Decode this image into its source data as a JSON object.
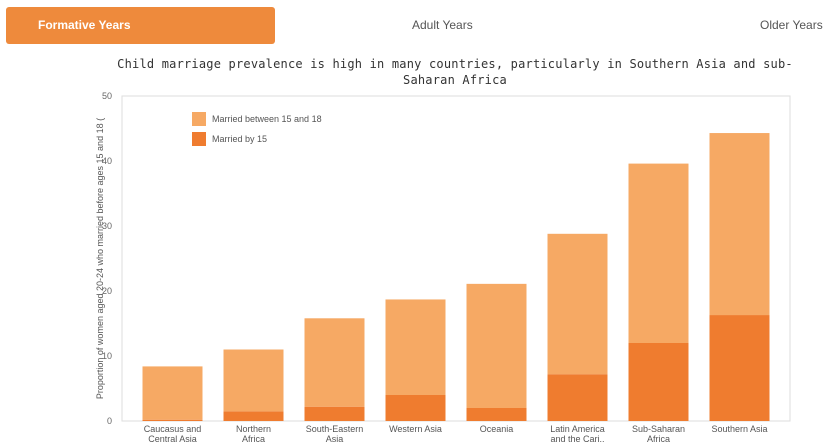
{
  "tabs": [
    {
      "label": "Formative Years",
      "active": true
    },
    {
      "label": "Adult Years",
      "active": false
    },
    {
      "label": "Older Years",
      "active": false
    }
  ],
  "colors": {
    "tab_active": "#ee8a3c",
    "married_between_15_18": "#f6a964",
    "married_by_15": "#ef7c2f"
  },
  "chart_data": {
    "type": "bar",
    "stacked": true,
    "title": "Child marriage prevalence is high in many countries, particularly in Southern Asia and sub-Saharan Africa",
    "ylabel": "Proportion of women aged 20-24 who married before ages 15 and 18 (",
    "xlabel": "",
    "ylim": [
      0,
      50
    ],
    "yticks": [
      0,
      10,
      20,
      30,
      40,
      50
    ],
    "grid": false,
    "legend_position": "top-left",
    "categories": [
      "Caucasus and Central Asia",
      "Northern Africa",
      "South-Eastern Asia",
      "Western Asia",
      "Oceania",
      "Latin America and the Cari..",
      "Sub-Saharan Africa",
      "Southern Asia"
    ],
    "series": [
      {
        "name": "Married by 15",
        "values": [
          0.2,
          1.5,
          2.2,
          4.0,
          2.0,
          7.2,
          12.0,
          16.3
        ]
      },
      {
        "name": "Married between 15 and 18",
        "values": [
          8.2,
          9.5,
          13.6,
          14.7,
          19.1,
          21.6,
          27.6,
          28.0
        ]
      }
    ]
  }
}
